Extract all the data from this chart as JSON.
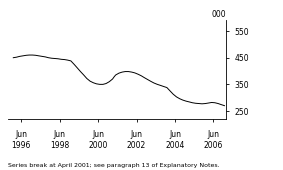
{
  "title": "",
  "ylabel": "000",
  "footnote": "Series break at April 2001; see paragraph 13 of Explanatory Notes.",
  "yticks": [
    250,
    350,
    450,
    550
  ],
  "ylim": [
    220,
    590
  ],
  "xlim_start": 1995.75,
  "xlim_end": 2007.1,
  "xtick_years": [
    1996,
    1998,
    2000,
    2002,
    2004,
    2006
  ],
  "line_color": "#000000",
  "background_color": "#ffffff",
  "series_break_x": 2001.25,
  "data": [
    [
      1996.0,
      450
    ],
    [
      1996.17,
      452
    ],
    [
      1996.33,
      455
    ],
    [
      1996.5,
      457
    ],
    [
      1996.67,
      459
    ],
    [
      1996.83,
      460
    ],
    [
      1997.0,
      460
    ],
    [
      1997.17,
      459
    ],
    [
      1997.33,
      457
    ],
    [
      1997.5,
      455
    ],
    [
      1997.67,
      453
    ],
    [
      1997.83,
      450
    ],
    [
      1998.0,
      448
    ],
    [
      1998.17,
      447
    ],
    [
      1998.33,
      446
    ],
    [
      1998.5,
      444
    ],
    [
      1998.67,
      443
    ],
    [
      1998.83,
      441
    ],
    [
      1999.0,
      438
    ],
    [
      1999.17,
      425
    ],
    [
      1999.33,
      412
    ],
    [
      1999.5,
      398
    ],
    [
      1999.67,
      385
    ],
    [
      1999.83,
      372
    ],
    [
      2000.0,
      362
    ],
    [
      2000.17,
      356
    ],
    [
      2000.33,
      352
    ],
    [
      2000.5,
      350
    ],
    [
      2000.67,
      350
    ],
    [
      2000.83,
      353
    ],
    [
      2001.0,
      360
    ],
    [
      2001.17,
      370
    ],
    [
      2001.25,
      378
    ],
    [
      2001.33,
      385
    ],
    [
      2001.5,
      392
    ],
    [
      2001.67,
      396
    ],
    [
      2001.83,
      398
    ],
    [
      2002.0,
      398
    ],
    [
      2002.17,
      396
    ],
    [
      2002.33,
      393
    ],
    [
      2002.5,
      388
    ],
    [
      2002.67,
      382
    ],
    [
      2002.83,
      375
    ],
    [
      2003.0,
      368
    ],
    [
      2003.17,
      361
    ],
    [
      2003.33,
      355
    ],
    [
      2003.5,
      350
    ],
    [
      2003.67,
      346
    ],
    [
      2003.83,
      342
    ],
    [
      2004.0,
      338
    ],
    [
      2004.17,
      325
    ],
    [
      2004.33,
      313
    ],
    [
      2004.5,
      303
    ],
    [
      2004.67,
      296
    ],
    [
      2004.83,
      291
    ],
    [
      2005.0,
      287
    ],
    [
      2005.17,
      284
    ],
    [
      2005.33,
      281
    ],
    [
      2005.5,
      279
    ],
    [
      2005.67,
      278
    ],
    [
      2005.83,
      277
    ],
    [
      2006.0,
      278
    ],
    [
      2006.17,
      280
    ],
    [
      2006.33,
      282
    ],
    [
      2006.5,
      281
    ],
    [
      2006.67,
      278
    ],
    [
      2006.83,
      274
    ],
    [
      2007.0,
      270
    ]
  ]
}
